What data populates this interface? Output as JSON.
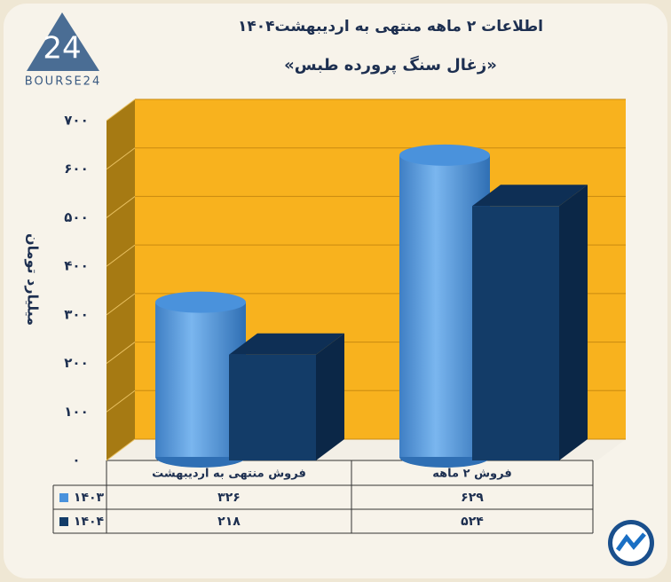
{
  "logo": {
    "text": "BOURSE24",
    "mark": "24"
  },
  "chart_data": {
    "type": "bar3d",
    "title": "اطلاعات ۲ ماهه منتهی به اردیبهشت۱۴۰۴",
    "subtitle": "«زغال سنگ پرورده طبس»",
    "y_label": "میلیارد تومان",
    "categories": [
      "فروش منتهی به اردیبهشت",
      "فروش ۲ ماهه"
    ],
    "series": [
      {
        "name": "۱۴۰۳",
        "color": "#4a92dc",
        "values": [
          326,
          629
        ],
        "value_labels": [
          "۳۲۶",
          "۶۲۹"
        ]
      },
      {
        "name": "۱۴۰۴",
        "color": "#133c68",
        "values": [
          218,
          524
        ],
        "value_labels": [
          "۲۱۸",
          "۵۲۴"
        ]
      }
    ],
    "ylim": [
      0,
      700
    ],
    "yticks": [
      {
        "value": 0,
        "label": "۰"
      },
      {
        "value": 100,
        "label": "۱۰۰"
      },
      {
        "value": 200,
        "label": "۲۰۰"
      },
      {
        "value": 300,
        "label": "۳۰۰"
      },
      {
        "value": 400,
        "label": "۴۰۰"
      },
      {
        "value": 500,
        "label": "۵۰۰"
      },
      {
        "value": 600,
        "label": "۶۰۰"
      },
      {
        "value": 700,
        "label": "۷۰۰"
      }
    ],
    "grid": true
  }
}
